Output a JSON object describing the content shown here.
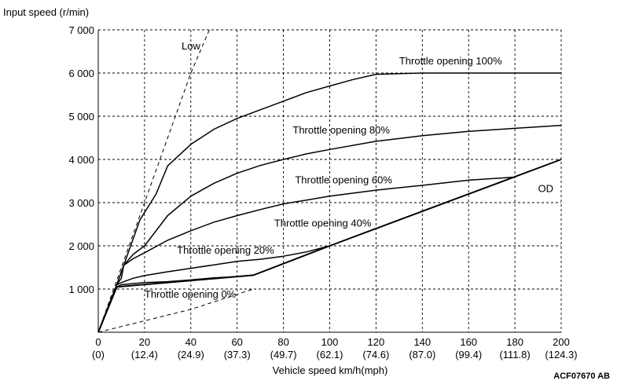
{
  "chart_data": {
    "type": "line",
    "ylabel": "Input speed (r/min)",
    "xlabel": "Vehicle speed  km/h(mph)",
    "figure_id": "ACF07670 AB",
    "xlim": [
      0,
      200
    ],
    "ylim": [
      0,
      7000
    ],
    "grid": true,
    "x_ticks": [
      0,
      20,
      40,
      60,
      80,
      100,
      120,
      140,
      160,
      180,
      200
    ],
    "x_tick_labels": [
      "0",
      "20",
      "40",
      "60",
      "80",
      "100",
      "120",
      "140",
      "160",
      "180",
      "200"
    ],
    "x_tick_sublabels": [
      "(0)",
      "(12.4)",
      "(24.9)",
      "(37.3)",
      "(49.7)",
      "(62.1)",
      "(74.6)",
      "(87.0)",
      "(99.4)",
      "(111.8)",
      "(124.3)"
    ],
    "y_ticks": [
      1000,
      2000,
      3000,
      4000,
      5000,
      6000,
      7000
    ],
    "y_tick_labels": [
      "1 000",
      "2 000",
      "3 000",
      "4 000",
      "5 000",
      "6 000",
      "7 000"
    ],
    "series": [
      {
        "name": "Low",
        "style": "dashed",
        "points": [
          [
            0,
            0
          ],
          [
            10,
            1500
          ],
          [
            20,
            3000
          ],
          [
            30,
            4500
          ],
          [
            40,
            6000
          ],
          [
            48,
            7000
          ]
        ]
      },
      {
        "name": "OD",
        "style": "solid-bold",
        "points": [
          [
            0,
            0
          ],
          [
            8,
            1050
          ],
          [
            67,
            1320
          ],
          [
            100,
            2000
          ],
          [
            200,
            4000
          ]
        ]
      },
      {
        "name": "Throttle opening 0%",
        "style": "dashed",
        "points": [
          [
            0,
            0
          ],
          [
            40,
            530
          ],
          [
            67,
            1000
          ]
        ]
      },
      {
        "name": "Throttle opening 20%",
        "style": "solid",
        "points": [
          [
            0,
            0
          ],
          [
            8,
            1050
          ],
          [
            10,
            1100
          ],
          [
            20,
            1150
          ],
          [
            30,
            1170
          ],
          [
            40,
            1210
          ],
          [
            50,
            1260
          ],
          [
            60,
            1290
          ],
          [
            67,
            1320
          ]
        ]
      },
      {
        "name": "Throttle opening 40%",
        "style": "solid",
        "points": [
          [
            0,
            0
          ],
          [
            8,
            1100
          ],
          [
            10,
            1150
          ],
          [
            15,
            1250
          ],
          [
            20,
            1310
          ],
          [
            30,
            1400
          ],
          [
            40,
            1480
          ],
          [
            50,
            1560
          ],
          [
            60,
            1640
          ],
          [
            70,
            1690
          ],
          [
            80,
            1760
          ],
          [
            90,
            1860
          ],
          [
            100,
            2000
          ]
        ]
      },
      {
        "name": "Throttle opening 60%",
        "style": "solid",
        "points": [
          [
            0,
            0
          ],
          [
            8,
            1100
          ],
          [
            10,
            1250
          ],
          [
            11,
            1550
          ],
          [
            15,
            1700
          ],
          [
            20,
            1840
          ],
          [
            30,
            2130
          ],
          [
            40,
            2350
          ],
          [
            50,
            2550
          ],
          [
            60,
            2700
          ],
          [
            70,
            2840
          ],
          [
            80,
            2970
          ],
          [
            90,
            3060
          ],
          [
            100,
            3150
          ],
          [
            120,
            3290
          ],
          [
            140,
            3400
          ],
          [
            160,
            3520
          ],
          [
            180,
            3590
          ]
        ]
      },
      {
        "name": "Throttle opening 80%",
        "style": "solid",
        "points": [
          [
            0,
            0
          ],
          [
            8,
            1100
          ],
          [
            11,
            1550
          ],
          [
            15,
            1800
          ],
          [
            20,
            2000
          ],
          [
            30,
            2700
          ],
          [
            40,
            3150
          ],
          [
            50,
            3450
          ],
          [
            60,
            3680
          ],
          [
            70,
            3860
          ],
          [
            80,
            4000
          ],
          [
            90,
            4130
          ],
          [
            100,
            4230
          ],
          [
            120,
            4420
          ],
          [
            140,
            4550
          ],
          [
            160,
            4650
          ],
          [
            180,
            4720
          ],
          [
            200,
            4790
          ]
        ]
      },
      {
        "name": "Throttle opening 100%",
        "style": "solid",
        "points": [
          [
            0,
            0
          ],
          [
            8,
            1100
          ],
          [
            11,
            1550
          ],
          [
            18,
            2600
          ],
          [
            25,
            3200
          ],
          [
            30,
            3850
          ],
          [
            40,
            4350
          ],
          [
            50,
            4700
          ],
          [
            60,
            4950
          ],
          [
            70,
            5150
          ],
          [
            80,
            5350
          ],
          [
            90,
            5550
          ],
          [
            100,
            5700
          ],
          [
            110,
            5850
          ],
          [
            120,
            5970
          ],
          [
            140,
            6000
          ],
          [
            160,
            6000
          ],
          [
            180,
            6000
          ],
          [
            200,
            6000
          ]
        ]
      }
    ],
    "annotations": [
      {
        "text": "Low",
        "x": 36,
        "y": 6550
      },
      {
        "text": "Throttle opening 100%",
        "x": 130,
        "y": 6200
      },
      {
        "text": "Throttle opening 80%",
        "x": 84,
        "y": 4600
      },
      {
        "text": "Throttle opening 60%",
        "x": 85,
        "y": 3450
      },
      {
        "text": "Throttle opening 40%",
        "x": 76,
        "y": 2450
      },
      {
        "text": "Throttle opening 20%",
        "x": 34,
        "y": 1820
      },
      {
        "text": "Throttle opening 0%",
        "x": 20,
        "y": 800
      },
      {
        "text": "OD",
        "x": 190,
        "y": 3250
      }
    ]
  }
}
